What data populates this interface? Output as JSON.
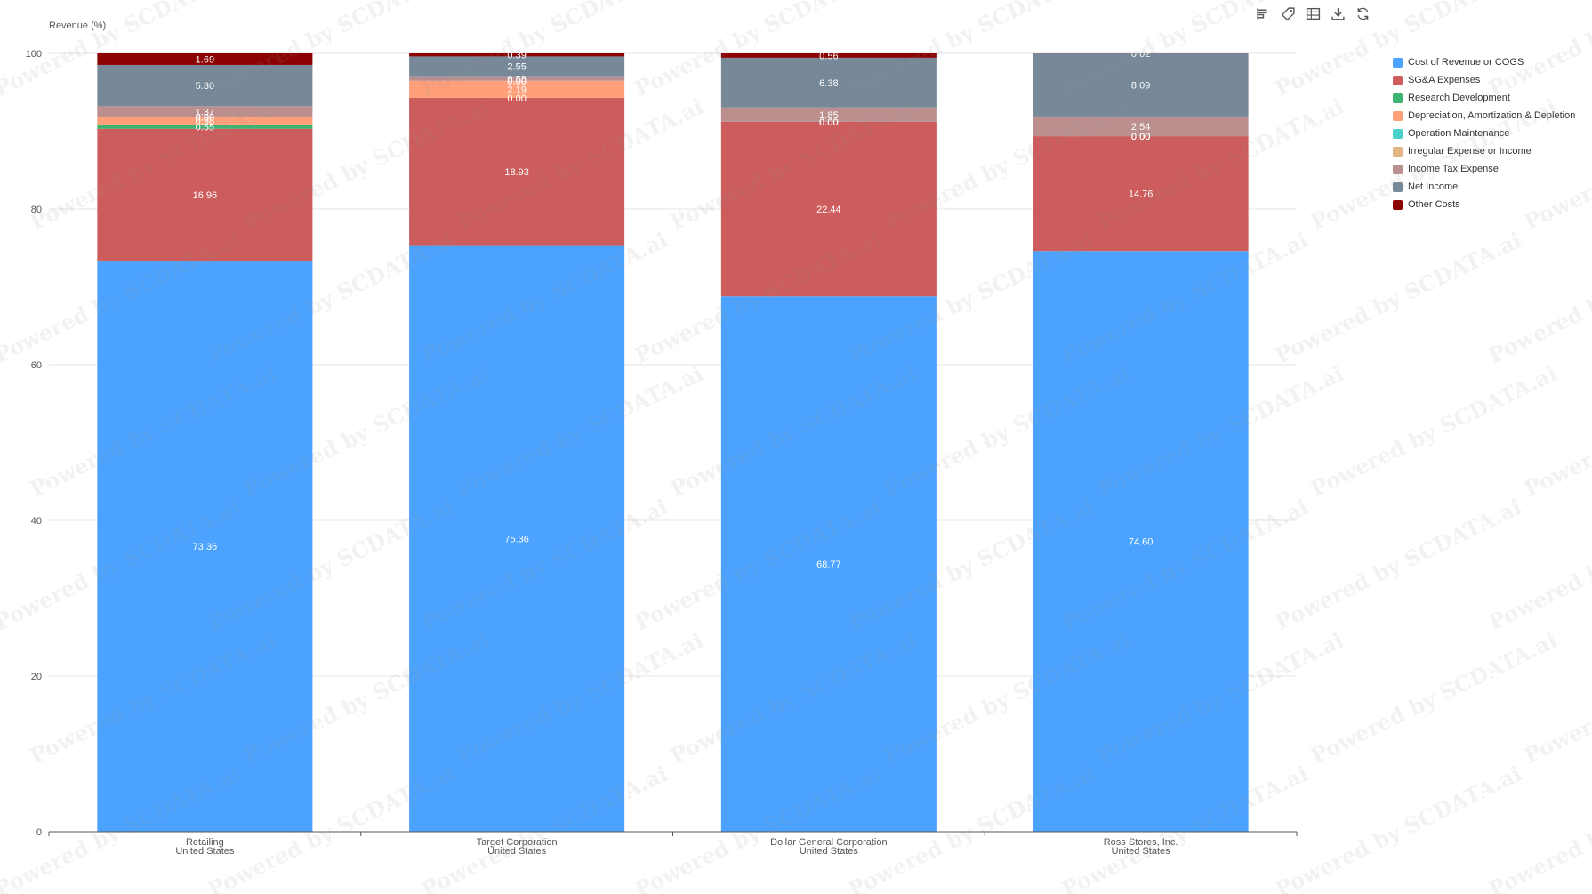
{
  "toolbar": {
    "icons": [
      "legend-toggle-icon",
      "tag-icon",
      "data-table-icon",
      "download-icon",
      "refresh-icon"
    ]
  },
  "watermark_text": "Powered by SCDATA.ai",
  "chart_data": {
    "type": "bar",
    "stacked": true,
    "ylabel": "Revenue (%)",
    "ylim": [
      0,
      100
    ],
    "yticks": [
      "0",
      "20",
      "40",
      "60",
      "80",
      "100"
    ],
    "grid": true,
    "legend_position": "right",
    "categories": [
      {
        "line1": "Retailing",
        "line2": "United States"
      },
      {
        "line1": "Target Corporation",
        "line2": "United States"
      },
      {
        "line1": "Dollar General Corporation",
        "line2": "United States"
      },
      {
        "line1": "Ross Stores, Inc.",
        "line2": "United States"
      }
    ],
    "series": [
      {
        "name": "Cost of Revenue or COGS",
        "color": "#4ba3ff",
        "values": [
          73.36,
          75.36,
          68.77,
          74.6
        ],
        "labels": [
          "73.36",
          "75.36",
          "68.77",
          "74.60"
        ]
      },
      {
        "name": "SG&A Expenses",
        "color": "#cd5c5c",
        "values": [
          16.96,
          18.93,
          22.44,
          14.76
        ],
        "labels": [
          "16.96",
          "18.93",
          "22.44",
          "14.76"
        ]
      },
      {
        "name": "Research Development",
        "color": "#3cb371",
        "values": [
          0.55,
          0.0,
          0.0,
          0.0
        ],
        "labels": [
          "0.55",
          "0.00",
          "0.00",
          "0.00"
        ]
      },
      {
        "name": "Depreciation, Amortization & Depletion",
        "color": "#ffa07a",
        "values": [
          0.98,
          2.19,
          0.0,
          0.0
        ],
        "labels": [
          "0.98",
          "2.19",
          "0.00",
          "0.00"
        ]
      },
      {
        "name": "Operation Maintenance",
        "color": "#48d1cc",
        "values": [
          0.0,
          0.0,
          0.0,
          0.0
        ],
        "labels": [
          "0.00",
          "0.00",
          "0.00",
          "0.00"
        ]
      },
      {
        "name": "Irregular Expense or Income",
        "color": "#e0b583",
        "values": [
          0.0,
          0.0,
          0.0,
          0.0
        ],
        "labels": [
          "0.00",
          "0.00",
          "0.00",
          "0.00"
        ]
      },
      {
        "name": "Income Tax Expense",
        "color": "#bc8f8f",
        "values": [
          1.37,
          0.58,
          1.85,
          2.54
        ],
        "labels": [
          "1.37",
          "0.58",
          "1.85",
          "2.54"
        ]
      },
      {
        "name": "Net Income",
        "color": "#778899",
        "values": [
          5.3,
          2.55,
          6.38,
          8.09
        ],
        "labels": [
          "5.30",
          "2.55",
          "6.38",
          "8.09"
        ]
      },
      {
        "name": "Other Costs",
        "color": "#8b0000",
        "values": [
          1.69,
          0.39,
          0.56,
          0.02
        ],
        "labels": [
          "1.69",
          "0.39",
          "0.56",
          "0.02"
        ]
      }
    ]
  }
}
